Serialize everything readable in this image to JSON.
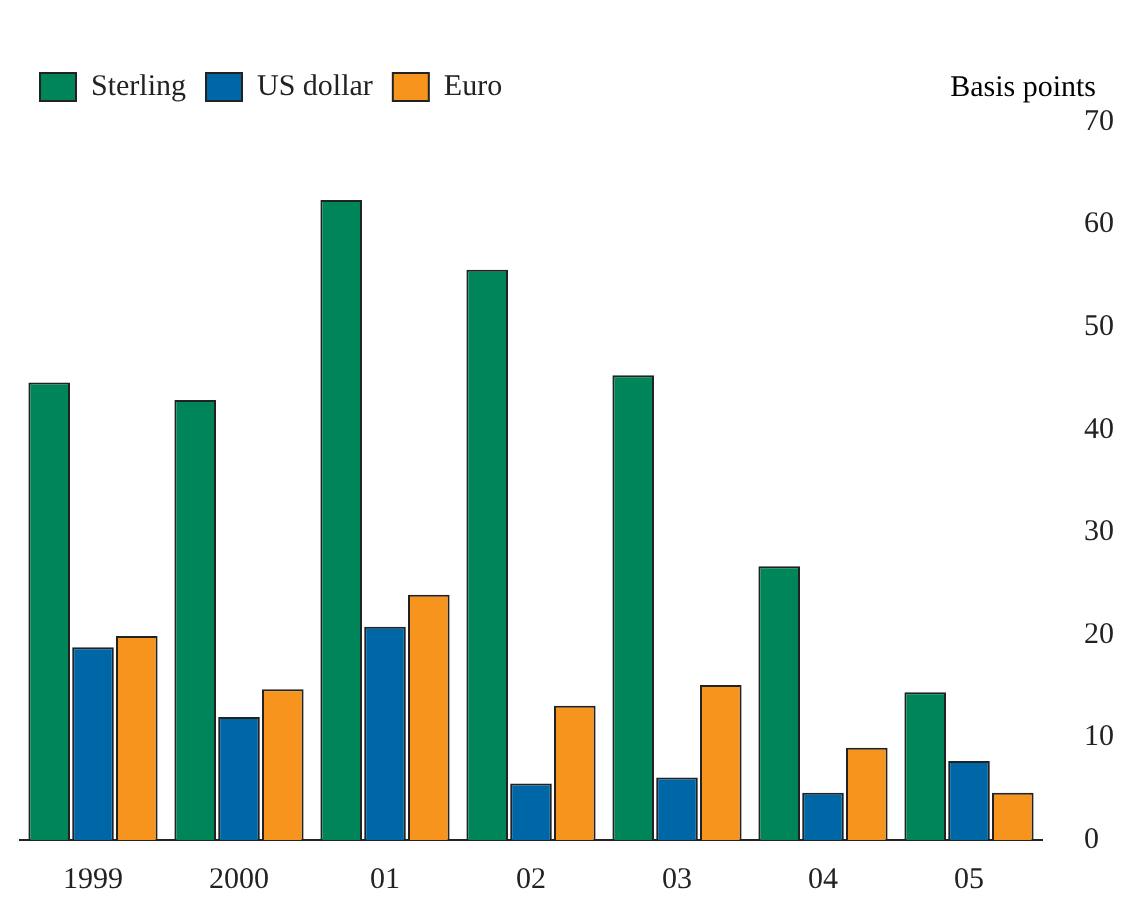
{
  "chart_data": {
    "type": "bar",
    "ylabel": "Basis points",
    "categories": [
      "1999",
      "2000",
      "01",
      "02",
      "03",
      "04",
      "05"
    ],
    "series": [
      {
        "name": "Sterling",
        "color": "#00855a",
        "values": [
          44.6,
          42.9,
          62.4,
          55.6,
          45.3,
          26.7,
          14.4
        ]
      },
      {
        "name": "US dollar",
        "color": "#0067a6",
        "values": [
          18.8,
          12.0,
          20.8,
          5.5,
          6.1,
          4.6,
          7.7
        ]
      },
      {
        "name": "Euro",
        "color": "#f7941d",
        "values": [
          19.9,
          14.7,
          23.9,
          13.1,
          15.1,
          9.0,
          4.6
        ]
      }
    ],
    "ylim": [
      0,
      70
    ],
    "yticks": [
      0,
      10,
      20,
      30,
      40,
      50,
      60,
      70
    ],
    "grid": false,
    "legend": "top left"
  }
}
